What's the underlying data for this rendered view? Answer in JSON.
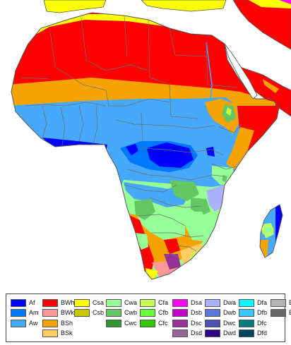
{
  "colors": {
    "ocean": "#ffffff",
    "border": "#6e6e6e",
    "coast": "#555555",
    "BWh": "#ff0000",
    "BWk": "#ff9999",
    "BSh": "#f5a300",
    "BSk": "#ffcc66",
    "Af": "#0000fe",
    "Am": "#0077ff",
    "Aw": "#46a9fa",
    "Csa": "#ffff00",
    "Csb": "#c6c700",
    "Cwa": "#96ff96",
    "Cwb": "#63c764",
    "Cwc": "#329633",
    "Cfa": "#c6ff4e",
    "Cfb": "#66ff33",
    "Cfc": "#33c701",
    "Dsa": "#ff00fe",
    "Dsb": "#c600c7",
    "Dsc": "#963295",
    "Dsd": "#966495",
    "Dwa": "#abb1ff",
    "Dwb": "#5a77db",
    "Dwc": "#4c51b5",
    "Dwd": "#320087",
    "Dfa": "#00ffff",
    "Dfb": "#38c7ff",
    "Dfc": "#007e7d",
    "Dfd": "#00455e",
    "ET": "#b2b2b2",
    "EF": "#686868"
  },
  "legend": {
    "columns": [
      [
        "Af",
        "Am",
        "Aw"
      ],
      [
        "BWh",
        "BWk",
        "BSh",
        "BSk"
      ],
      [
        "Csa",
        "Csb"
      ],
      [
        "Cwa",
        "Cwb",
        "Cwc"
      ],
      [
        "Cfa",
        "Cfb",
        "Cfc"
      ],
      [
        "Dsa",
        "Dsb",
        "Dsc",
        "Dsd"
      ],
      [
        "Dwa",
        "Dwb",
        "Dwc",
        "Dwd"
      ],
      [
        "Dfa",
        "Dfb",
        "Dfc",
        "Dfd"
      ],
      [
        "ET",
        "EF"
      ]
    ]
  }
}
